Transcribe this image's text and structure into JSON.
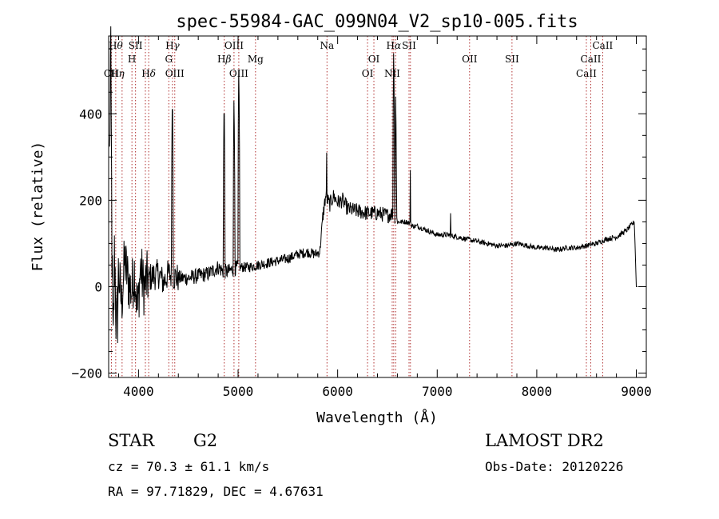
{
  "chart_data": {
    "type": "line",
    "title": "spec-55984-GAC_099N04_V2_sp10-005.fits",
    "xlabel": "Wavelength (Å)",
    "ylabel": "Flux (relative)",
    "xlim": [
      3700,
      9100
    ],
    "ylim": [
      -210,
      580
    ],
    "x_ticks": [
      4000,
      5000,
      6000,
      7000,
      8000,
      9000
    ],
    "y_ticks": [
      -200,
      0,
      200,
      400
    ],
    "x_tick_labels": [
      "4000",
      "5000",
      "6000",
      "7000",
      "8000",
      "9000"
    ],
    "y_tick_labels": [
      "−200",
      "0",
      "200",
      "400"
    ],
    "grid": false,
    "series": [
      {
        "color": "#000000",
        "anchors": [
          [
            3700,
            20
          ],
          [
            3720,
            560
          ],
          [
            3735,
            60
          ],
          [
            3745,
            -180
          ],
          [
            3760,
            90
          ],
          [
            3780,
            -120
          ],
          [
            3800,
            30
          ],
          [
            3830,
            -40
          ],
          [
            3860,
            60
          ],
          [
            3900,
            10
          ],
          [
            3930,
            -10
          ],
          [
            3960,
            40
          ],
          [
            3990,
            -60
          ],
          [
            4020,
            45
          ],
          [
            4050,
            0
          ],
          [
            4100,
            20
          ],
          [
            4150,
            25
          ],
          [
            4200,
            30
          ],
          [
            4250,
            10
          ],
          [
            4300,
            30
          ],
          [
            4340,
            25
          ],
          [
            4400,
            20
          ],
          [
            4500,
            20
          ],
          [
            4600,
            25
          ],
          [
            4700,
            30
          ],
          [
            4800,
            45
          ],
          [
            4850,
            35
          ],
          [
            4900,
            35
          ],
          [
            5000,
            45
          ],
          [
            5100,
            45
          ],
          [
            5200,
            50
          ],
          [
            5300,
            55
          ],
          [
            5400,
            60
          ],
          [
            5500,
            65
          ],
          [
            5600,
            75
          ],
          [
            5700,
            80
          ],
          [
            5770,
            75
          ],
          [
            5820,
            80
          ],
          [
            5850,
            160
          ],
          [
            5880,
            210
          ],
          [
            5920,
            190
          ],
          [
            5960,
            210
          ],
          [
            6000,
            195
          ],
          [
            6050,
            200
          ],
          [
            6100,
            180
          ],
          [
            6200,
            175
          ],
          [
            6300,
            170
          ],
          [
            6400,
            170
          ],
          [
            6500,
            165
          ],
          [
            6560,
            170
          ],
          [
            6600,
            150
          ],
          [
            6650,
            150
          ],
          [
            6700,
            150
          ],
          [
            6750,
            140
          ],
          [
            6800,
            140
          ],
          [
            6900,
            130
          ],
          [
            7000,
            120
          ],
          [
            7100,
            120
          ],
          [
            7200,
            115
          ],
          [
            7300,
            110
          ],
          [
            7400,
            105
          ],
          [
            7500,
            100
          ],
          [
            7600,
            95
          ],
          [
            7700,
            95
          ],
          [
            7800,
            100
          ],
          [
            7900,
            95
          ],
          [
            8000,
            90
          ],
          [
            8100,
            90
          ],
          [
            8200,
            85
          ],
          [
            8300,
            90
          ],
          [
            8400,
            90
          ],
          [
            8500,
            95
          ],
          [
            8600,
            100
          ],
          [
            8700,
            110
          ],
          [
            8800,
            115
          ],
          [
            8900,
            130
          ],
          [
            8980,
            150
          ],
          [
            9000,
            0
          ]
        ],
        "peaks": [
          [
            4340,
            470
          ],
          [
            4860,
            460
          ],
          [
            4959,
            460
          ],
          [
            5007,
            530
          ],
          [
            5890,
            310
          ],
          [
            6563,
            570
          ],
          [
            6583,
            470
          ],
          [
            6730,
            270
          ],
          [
            7135,
            200
          ]
        ]
      }
    ],
    "lines": [
      {
        "wl": 3728,
        "label": "OII",
        "tier": 3,
        "style": "serif"
      },
      {
        "wl": 3771,
        "label": "H",
        "greek": "θ",
        "tier": 0
      },
      {
        "wl": 3835,
        "label": "H",
        "greek": "η",
        "tier": 3,
        "dx": -6
      },
      {
        "wl": 3934,
        "label": "H",
        "tier": 1
      },
      {
        "wl": 3970,
        "label": "SII",
        "tier": 0
      },
      {
        "wl": 4069,
        "label": "SII",
        "tier": 0,
        "hide": true
      },
      {
        "wl": 4102,
        "label": "H",
        "greek": "δ",
        "tier": 2
      },
      {
        "wl": 4304,
        "label": "G",
        "tier": 1
      },
      {
        "wl": 4341,
        "label": "H",
        "greek": "γ",
        "tier": 0
      },
      {
        "wl": 4364,
        "label": "OIII",
        "tier": 2
      },
      {
        "wl": 4861,
        "label": "H",
        "greek": "β",
        "tier": 1
      },
      {
        "wl": 4959,
        "label": "OIII",
        "tier": 0
      },
      {
        "wl": 5007,
        "label": "OIII",
        "tier": 2
      },
      {
        "wl": 5175,
        "label": "Mg",
        "tier": 1
      },
      {
        "wl": 5893,
        "label": "Na",
        "tier": 0
      },
      {
        "wl": 6300,
        "label": "OI",
        "tier": 2
      },
      {
        "wl": 6364,
        "label": "OI",
        "tier": 1
      },
      {
        "wl": 6548,
        "label": "NII",
        "tier": 2
      },
      {
        "wl": 6563,
        "label": "H",
        "greek": "α",
        "tier": 0
      },
      {
        "wl": 6583,
        "label": "NII",
        "tier": 2,
        "hide": true
      },
      {
        "wl": 6717,
        "label": "SII",
        "tier": 0
      },
      {
        "wl": 6731,
        "label": "SII",
        "tier": 0,
        "hide": true
      },
      {
        "wl": 7325,
        "label": "OII",
        "tier": 1
      },
      {
        "wl": 7751,
        "label": "SII",
        "tier": 1
      },
      {
        "wl": 8498,
        "label": "CaII",
        "tier": 2
      },
      {
        "wl": 8542,
        "label": "CaII",
        "tier": 1
      },
      {
        "wl": 8662,
        "label": "CaII",
        "tier": 0
      }
    ]
  },
  "info": {
    "object_class": "STAR",
    "subclass": "G2",
    "survey": "LAMOST DR2",
    "redshift": "cz = 70.3 ± 61.1 km/s",
    "obs_date": "Obs-Date: 20120226",
    "coords": "RA =  97.71829, DEC =   4.67631"
  }
}
